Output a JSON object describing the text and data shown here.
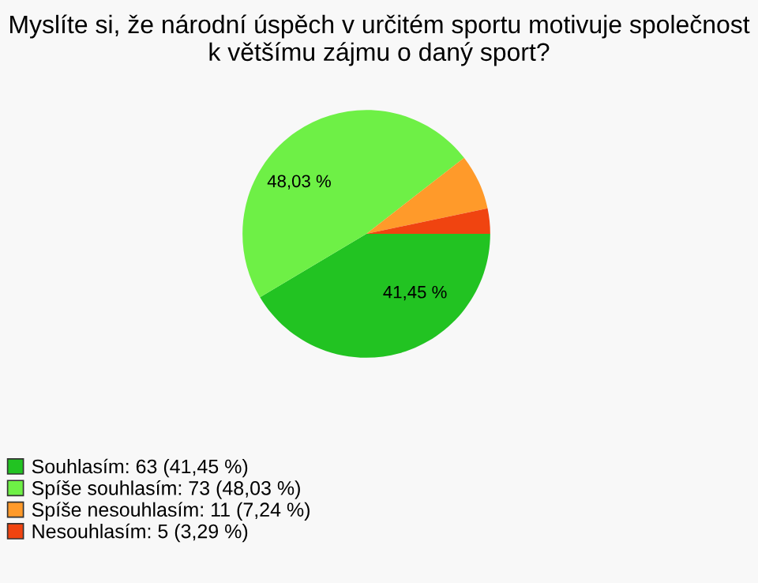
{
  "chart_data": {
    "type": "pie",
    "title": "Myslíte si, že národní úspěch v určitém sportu motivuje společnost k většímu zájmu o daný sport?",
    "categories": [
      "Souhlasím: 63 (41,45 %)",
      "Spíše souhlasím: 73 (48,03 %)",
      "Spíše nesouhlasím: 11 (7,24 %)",
      "Nesouhlasím: 5 (3,29 %)"
    ],
    "values": [
      41.45,
      48.03,
      7.24,
      3.29
    ],
    "value_labels": [
      "41,45 %",
      "48,03 %",
      null,
      null
    ],
    "colors": [
      "#22c322",
      "#6ef046",
      "#ff9a2a",
      "#f04410"
    ],
    "legend": "bottom left"
  }
}
